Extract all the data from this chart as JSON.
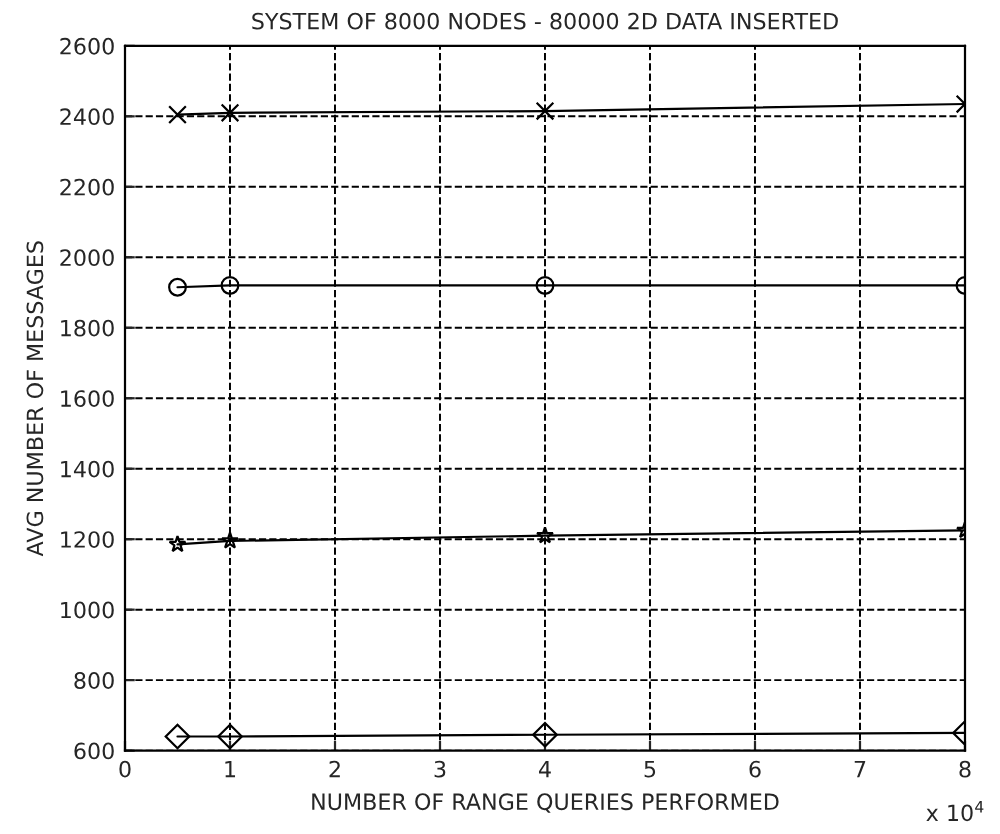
{
  "chart_data": {
    "type": "line",
    "title": "SYSTEM OF 8000 NODES - 80000 2D DATA INSERTED",
    "xlabel": "NUMBER OF RANGE QUERIES PERFORMED",
    "ylabel": "AVG NUMBER OF MESSAGES",
    "x": [
      0.5,
      1,
      4,
      8
    ],
    "series": [
      {
        "color": "#000000",
        "marker": "cross",
        "values": [
          2405,
          2410,
          2415,
          2435
        ]
      },
      {
        "color": "#000000",
        "marker": "circle",
        "values": [
          1915,
          1920,
          1920,
          1920
        ]
      },
      {
        "color": "#000000",
        "marker": "star",
        "values": [
          1185,
          1195,
          1210,
          1225
        ]
      },
      {
        "color": "#000000",
        "marker": "diamond",
        "values": [
          640,
          640,
          645,
          650
        ]
      }
    ],
    "xlim": [
      0,
      8
    ],
    "xticks": [
      0,
      1,
      2,
      3,
      4,
      5,
      6,
      7,
      8
    ],
    "ylim": [
      600,
      2600
    ],
    "yticks": [
      600,
      800,
      1000,
      1200,
      1400,
      1600,
      1800,
      2000,
      2200,
      2400,
      2600
    ],
    "grid": true,
    "line_style": "solid",
    "annotations": [
      "x 10$^{4}$"
    ]
  }
}
